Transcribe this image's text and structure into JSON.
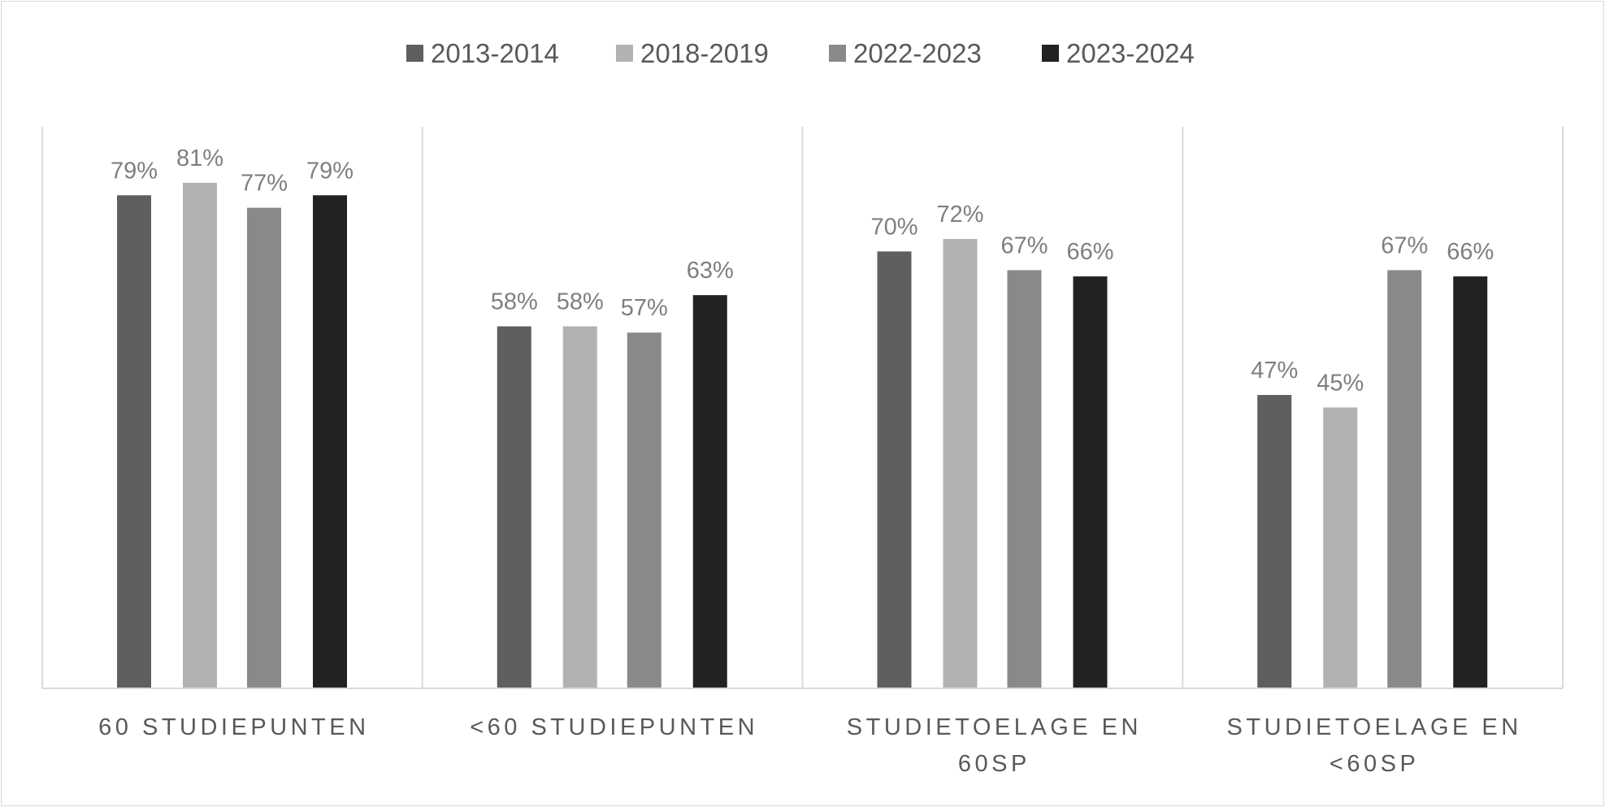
{
  "chart_data": {
    "type": "bar",
    "title": "",
    "xlabel": "",
    "ylabel": "",
    "ylim": [
      0,
      90
    ],
    "grid": false,
    "legend_position": "top",
    "categories": [
      [
        "60 STUDIEPUNTEN"
      ],
      [
        "<60 STUDIEPUNTEN"
      ],
      [
        "STUDIETOELAGE EN",
        "60SP"
      ],
      [
        "STUDIETOELAGE EN",
        "<60SP"
      ]
    ],
    "series": [
      {
        "name": "2013-2014",
        "color": "#5f5f5f",
        "values": [
          79,
          58,
          70,
          47
        ],
        "labels": [
          "79%",
          "58%",
          "70%",
          "47%"
        ]
      },
      {
        "name": "2018-2019",
        "color": "#b2b2b2",
        "values": [
          81,
          58,
          72,
          45
        ],
        "labels": [
          "81%",
          "58%",
          "72%",
          "45%"
        ]
      },
      {
        "name": "2022-2023",
        "color": "#898989",
        "values": [
          77,
          57,
          67,
          67
        ],
        "labels": [
          "77%",
          "57%",
          "67%",
          "67%"
        ]
      },
      {
        "name": "2023-2024",
        "color": "#222222",
        "values": [
          79,
          63,
          66,
          66
        ],
        "labels": [
          "79%",
          "63%",
          "66%",
          "66%"
        ]
      }
    ]
  }
}
